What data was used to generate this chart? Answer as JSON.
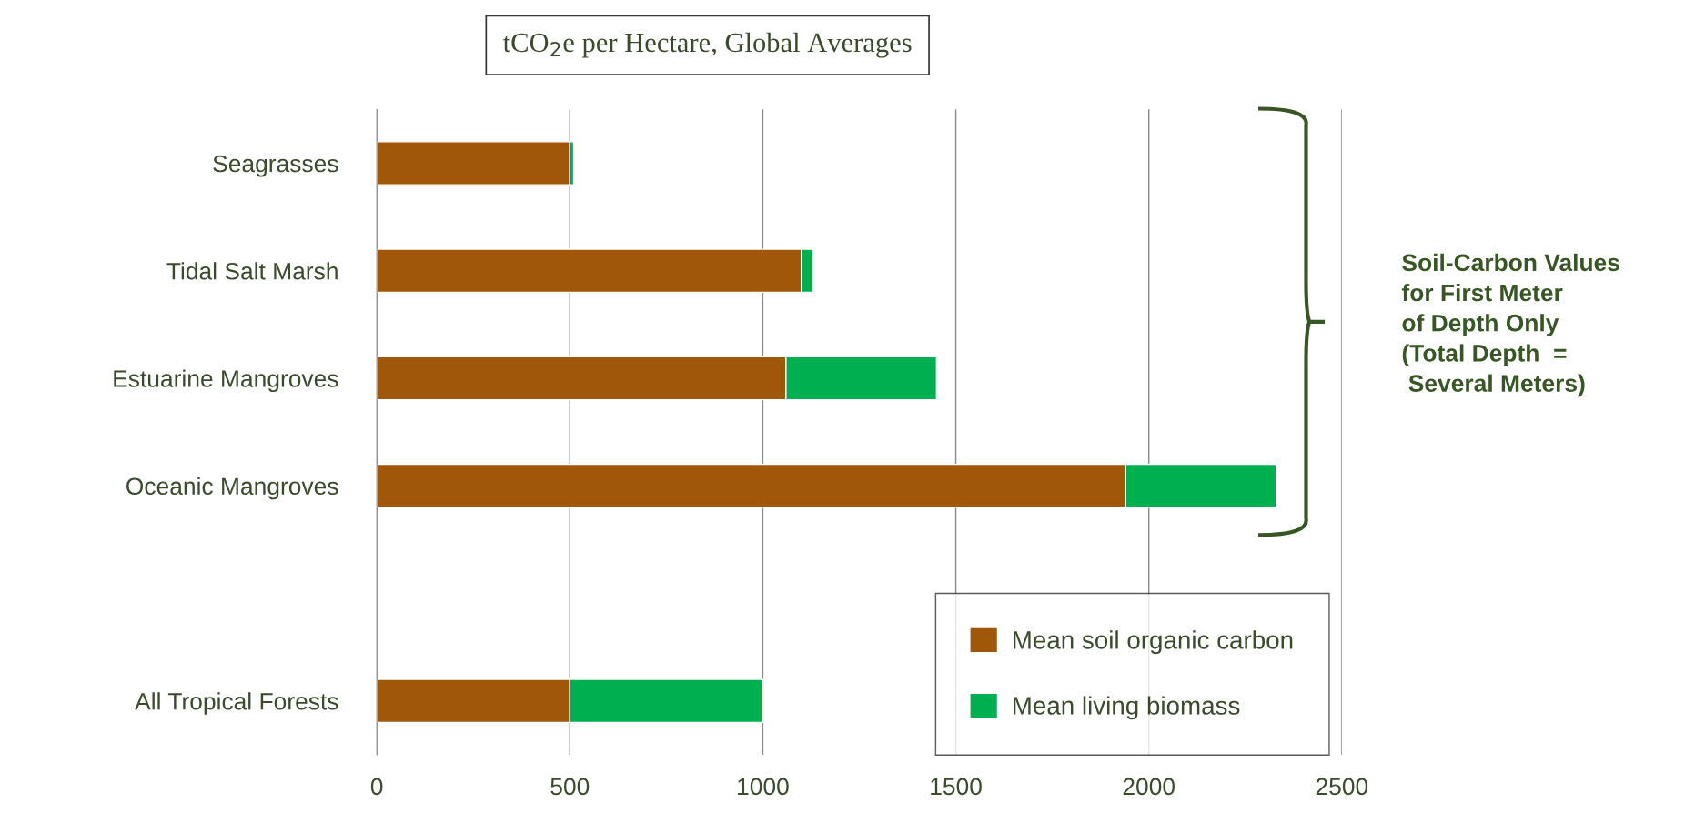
{
  "chart_data": {
    "type": "bar",
    "orientation": "horizontal",
    "stacked": true,
    "title": "tCO$_{2}$e per Hectare, Global Averages",
    "categories": [
      "Seagrasses",
      "Tidal Salt Marsh",
      "Estuarine Mangroves",
      "Oceanic Mangroves",
      null,
      "All Tropical Forests"
    ],
    "series": [
      {
        "name": "Mean soil organic carbon",
        "color": "#a0570a",
        "values": [
          500,
          1100,
          1060,
          1940,
          null,
          500
        ]
      },
      {
        "name": "Mean living biomass",
        "color": "#00b050",
        "values": [
          10,
          30,
          390,
          390,
          null,
          500
        ]
      }
    ],
    "xlim": [
      0,
      2500
    ],
    "xticks": [
      0,
      500,
      1000,
      1500,
      2000,
      2500
    ],
    "grid": "x",
    "legend": "bottom right",
    "annotations": [
      "Soil-Carbon Values\nfor First Meter\nof Depth Only\n(Total Depth  =\n Several Meters)"
    ]
  }
}
